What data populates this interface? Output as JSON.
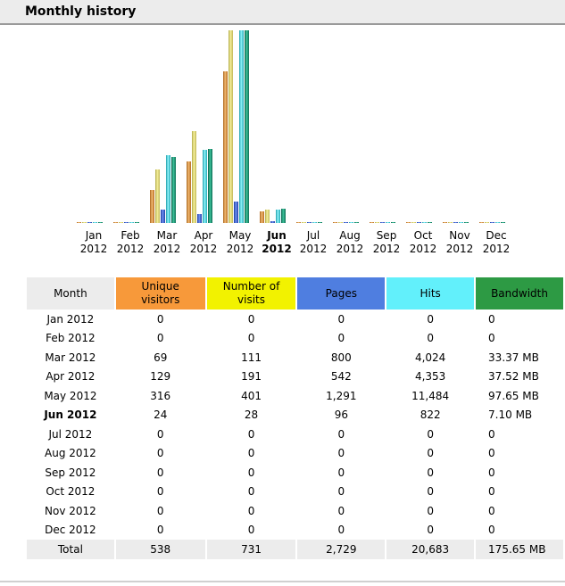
{
  "header": {
    "title": "Monthly history"
  },
  "colors": {
    "visitors": "#f7993a",
    "visits": "#f2f200",
    "pages": "#4f7ee0",
    "hits": "#62f0fb",
    "bandwidth": "#2d9a44"
  },
  "chart_data": {
    "type": "bar",
    "categories": [
      "Jan 2012",
      "Feb 2012",
      "Mar 2012",
      "Apr 2012",
      "May 2012",
      "Jun 2012",
      "Jul 2012",
      "Aug 2012",
      "Sep 2012",
      "Oct 2012",
      "Nov 2012",
      "Dec 2012"
    ],
    "current_month_index": 5,
    "series": [
      {
        "name": "Unique visitors",
        "values": [
          0,
          0,
          69,
          129,
          316,
          24,
          0,
          0,
          0,
          0,
          0,
          0
        ]
      },
      {
        "name": "Number of visits",
        "values": [
          0,
          0,
          111,
          191,
          401,
          28,
          0,
          0,
          0,
          0,
          0,
          0
        ]
      },
      {
        "name": "Pages",
        "values": [
          0,
          0,
          800,
          542,
          1291,
          96,
          0,
          0,
          0,
          0,
          0,
          0
        ]
      },
      {
        "name": "Hits",
        "values": [
          0,
          0,
          4024,
          4353,
          11484,
          822,
          0,
          0,
          0,
          0,
          0,
          0
        ]
      },
      {
        "name": "Bandwidth",
        "values": [
          0,
          0,
          33.37,
          37.52,
          97.65,
          7.1,
          0,
          0,
          0,
          0,
          0,
          0
        ]
      }
    ],
    "grid": false
  },
  "chart_labels": [
    {
      "m": "Jan",
      "y": "2012"
    },
    {
      "m": "Feb",
      "y": "2012"
    },
    {
      "m": "Mar",
      "y": "2012"
    },
    {
      "m": "Apr",
      "y": "2012"
    },
    {
      "m": "May",
      "y": "2012"
    },
    {
      "m": "Jun",
      "y": "2012"
    },
    {
      "m": "Jul",
      "y": "2012"
    },
    {
      "m": "Aug",
      "y": "2012"
    },
    {
      "m": "Sep",
      "y": "2012"
    },
    {
      "m": "Oct",
      "y": "2012"
    },
    {
      "m": "Nov",
      "y": "2012"
    },
    {
      "m": "Dec",
      "y": "2012"
    }
  ],
  "table": {
    "headers": {
      "month": "Month",
      "visitors_1": "Unique",
      "visitors_2": "visitors",
      "visits_1": "Number of",
      "visits_2": "visits",
      "pages": "Pages",
      "hits": "Hits",
      "bandwidth": "Bandwidth"
    },
    "rows": [
      {
        "month": "Jan 2012",
        "visitors": "0",
        "visits": "0",
        "pages": "0",
        "hits": "0",
        "bandwidth": "0"
      },
      {
        "month": "Feb 2012",
        "visitors": "0",
        "visits": "0",
        "pages": "0",
        "hits": "0",
        "bandwidth": "0"
      },
      {
        "month": "Mar 2012",
        "visitors": "69",
        "visits": "111",
        "pages": "800",
        "hits": "4,024",
        "bandwidth": "33.37 MB"
      },
      {
        "month": "Apr 2012",
        "visitors": "129",
        "visits": "191",
        "pages": "542",
        "hits": "4,353",
        "bandwidth": "37.52 MB"
      },
      {
        "month": "May 2012",
        "visitors": "316",
        "visits": "401",
        "pages": "1,291",
        "hits": "11,484",
        "bandwidth": "97.65 MB"
      },
      {
        "month": "Jun 2012",
        "visitors": "24",
        "visits": "28",
        "pages": "96",
        "hits": "822",
        "bandwidth": "7.10 MB"
      },
      {
        "month": "Jul 2012",
        "visitors": "0",
        "visits": "0",
        "pages": "0",
        "hits": "0",
        "bandwidth": "0"
      },
      {
        "month": "Aug 2012",
        "visitors": "0",
        "visits": "0",
        "pages": "0",
        "hits": "0",
        "bandwidth": "0"
      },
      {
        "month": "Sep 2012",
        "visitors": "0",
        "visits": "0",
        "pages": "0",
        "hits": "0",
        "bandwidth": "0"
      },
      {
        "month": "Oct 2012",
        "visitors": "0",
        "visits": "0",
        "pages": "0",
        "hits": "0",
        "bandwidth": "0"
      },
      {
        "month": "Nov 2012",
        "visitors": "0",
        "visits": "0",
        "pages": "0",
        "hits": "0",
        "bandwidth": "0"
      },
      {
        "month": "Dec 2012",
        "visitors": "0",
        "visits": "0",
        "pages": "0",
        "hits": "0",
        "bandwidth": "0"
      }
    ],
    "total": {
      "month": "Total",
      "visitors": "538",
      "visits": "731",
      "pages": "2,729",
      "hits": "20,683",
      "bandwidth": "175.65 MB"
    }
  }
}
